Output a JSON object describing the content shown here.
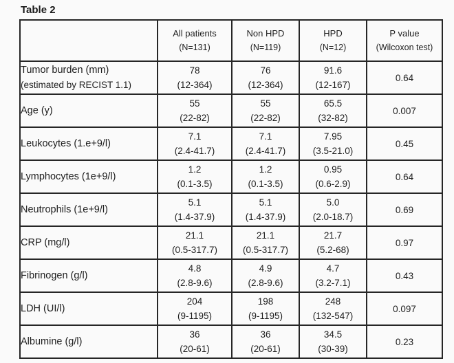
{
  "title": "Table 2",
  "table": {
    "columns": [
      {
        "line1": "All  patients",
        "line2": "(N=131)"
      },
      {
        "line1": "Non HPD",
        "line2": "(N=119)"
      },
      {
        "line1": "HPD",
        "line2": "(N=12)"
      },
      {
        "line1": "P value",
        "line2": "(Wilcoxon test)"
      }
    ],
    "rows": [
      {
        "label": "Tumor burden (mm)",
        "sublabel": "(estimated by RECIST 1.1)",
        "cols": [
          [
            "78",
            "(12-364)"
          ],
          [
            "76",
            "(12-364)"
          ],
          [
            "91.6",
            "(12-167)"
          ]
        ],
        "p": "0.64"
      },
      {
        "label": "Age (y)",
        "cols": [
          [
            "55",
            "(22-82)"
          ],
          [
            "55",
            "(22-82)"
          ],
          [
            "65.5",
            "(32-82)"
          ]
        ],
        "p": "0.007"
      },
      {
        "label": "Leukocytes (1.e+9/l)",
        "cols": [
          [
            "7.1",
            "(2.4-41.7)"
          ],
          [
            "7.1",
            "(2.4-41.7)"
          ],
          [
            "7.95",
            "(3.5-21.0)"
          ]
        ],
        "p": "0.45"
      },
      {
        "label": "Lymphocytes (1e+9/l)",
        "cols": [
          [
            "1.2",
            "(0.1-3.5)"
          ],
          [
            "1.2",
            "(0.1-3.5)"
          ],
          [
            "0.95",
            "(0.6-2.9)"
          ]
        ],
        "p": "0.64"
      },
      {
        "label": "Neutrophils (1e+9/l)",
        "cols": [
          [
            "5.1",
            "(1.4-37.9)"
          ],
          [
            "5.1",
            "(1.4-37.9)"
          ],
          [
            "5.0",
            "(2.0-18.7)"
          ]
        ],
        "p": "0.69"
      },
      {
        "label": "CRP (mg/l)",
        "cols": [
          [
            "21.1",
            "(0.5-317.7)"
          ],
          [
            "21.1",
            "(0.5-317.7)"
          ],
          [
            "21.7",
            "(5.2-68)"
          ]
        ],
        "p": "0.97"
      },
      {
        "label": "Fibrinogen (g/l)",
        "cols": [
          [
            "4.8",
            "(2.8-9.6)"
          ],
          [
            "4.9",
            "(2.8-9.6)"
          ],
          [
            "4.7",
            "(3.2-7.1)"
          ]
        ],
        "p": "0.43"
      },
      {
        "label": "LDH (UI/l)",
        "cols": [
          [
            "204",
            "(9-1195)"
          ],
          [
            "198",
            "(9-1195)"
          ],
          [
            "248",
            "(132-547)"
          ]
        ],
        "p": "0.097"
      },
      {
        "label": "Albumine (g/l)",
        "cols": [
          [
            "36",
            "(20-61)"
          ],
          [
            "36",
            "(20-61)"
          ],
          [
            "34.5",
            "(30-39)"
          ]
        ],
        "p": "0.23"
      }
    ]
  }
}
